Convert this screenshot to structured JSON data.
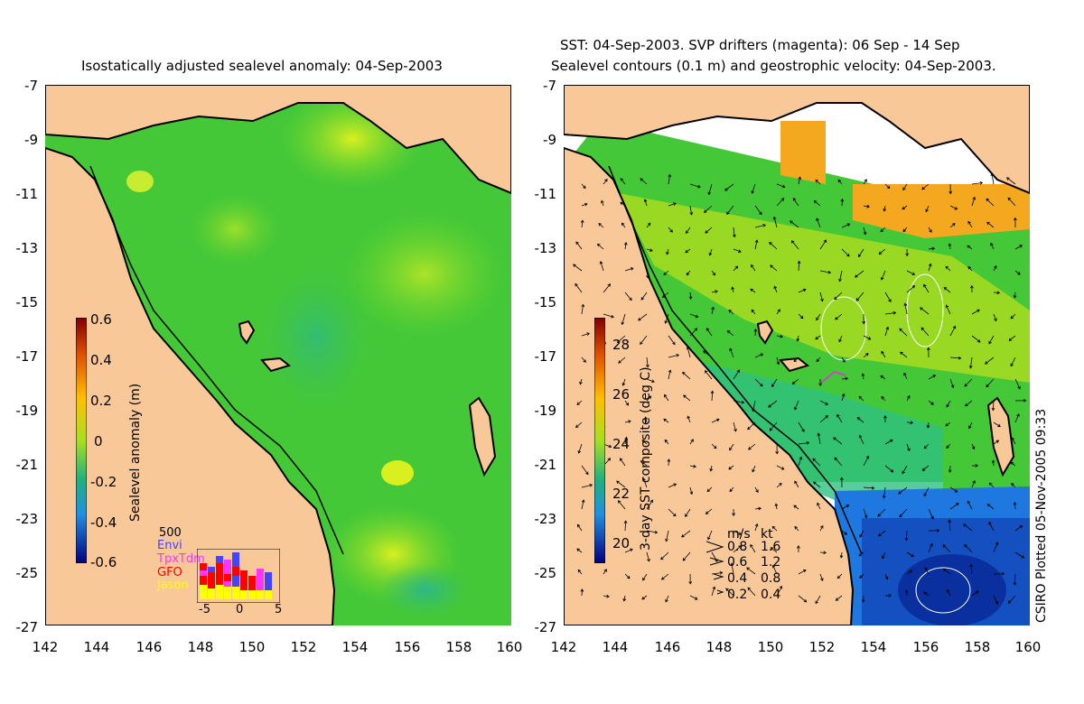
{
  "left_panel": {
    "title": "Isostatically adjusted sealevel anomaly: 04-Sep-2003",
    "colorbar": {
      "label": "Sealevel anomaly (m)",
      "ticks": [
        "0.6",
        "0.4",
        "0.2",
        "0",
        "-0.2",
        "-0.4",
        "-0.6"
      ]
    },
    "inset": {
      "count_label": "500",
      "missions": [
        {
          "name": "Envi",
          "color": "#4444ff"
        },
        {
          "name": "TpxTdm",
          "color": "#ff33ff"
        },
        {
          "name": "GFO",
          "color": "#ff0000"
        },
        {
          "name": "Jason",
          "color": "#ffff00"
        }
      ],
      "x_ticks": [
        "-5",
        "0",
        "5"
      ]
    }
  },
  "right_panel": {
    "title_line1": "SST: 04-Sep-2003. SVP drifters (magenta): 06 Sep - 14 Sep",
    "title_line2": "Sealevel contours (0.1 m) and geostrophic velocity: 04-Sep-2003.",
    "colorbar": {
      "label": "3-day SST composite (deg C)",
      "ticks": [
        "28",
        "26",
        "24",
        "22",
        "20"
      ]
    },
    "velocity_legend": {
      "header_ms": "m/s",
      "header_kt": "kt",
      "rows": [
        {
          "ms": "0.8",
          "kt": "1.6"
        },
        {
          "ms": "0.6",
          "kt": "1.2"
        },
        {
          "ms": "0.4",
          "kt": "0.8"
        },
        {
          "ms": "0.2",
          "kt": "0.4"
        }
      ]
    },
    "credit": "CSIRO Plotted 05-Nov-2005 09:33"
  },
  "axes": {
    "y_ticks": [
      "-7",
      "-9",
      "-11",
      "-13",
      "-15",
      "-17",
      "-19",
      "-21",
      "-23",
      "-25",
      "-27"
    ],
    "x_ticks": [
      "142",
      "144",
      "146",
      "148",
      "150",
      "152",
      "154",
      "156",
      "158",
      "160"
    ]
  },
  "colors": {
    "land": "#f8c898",
    "ocean_green": "#44cc22",
    "coast": "#000000"
  }
}
